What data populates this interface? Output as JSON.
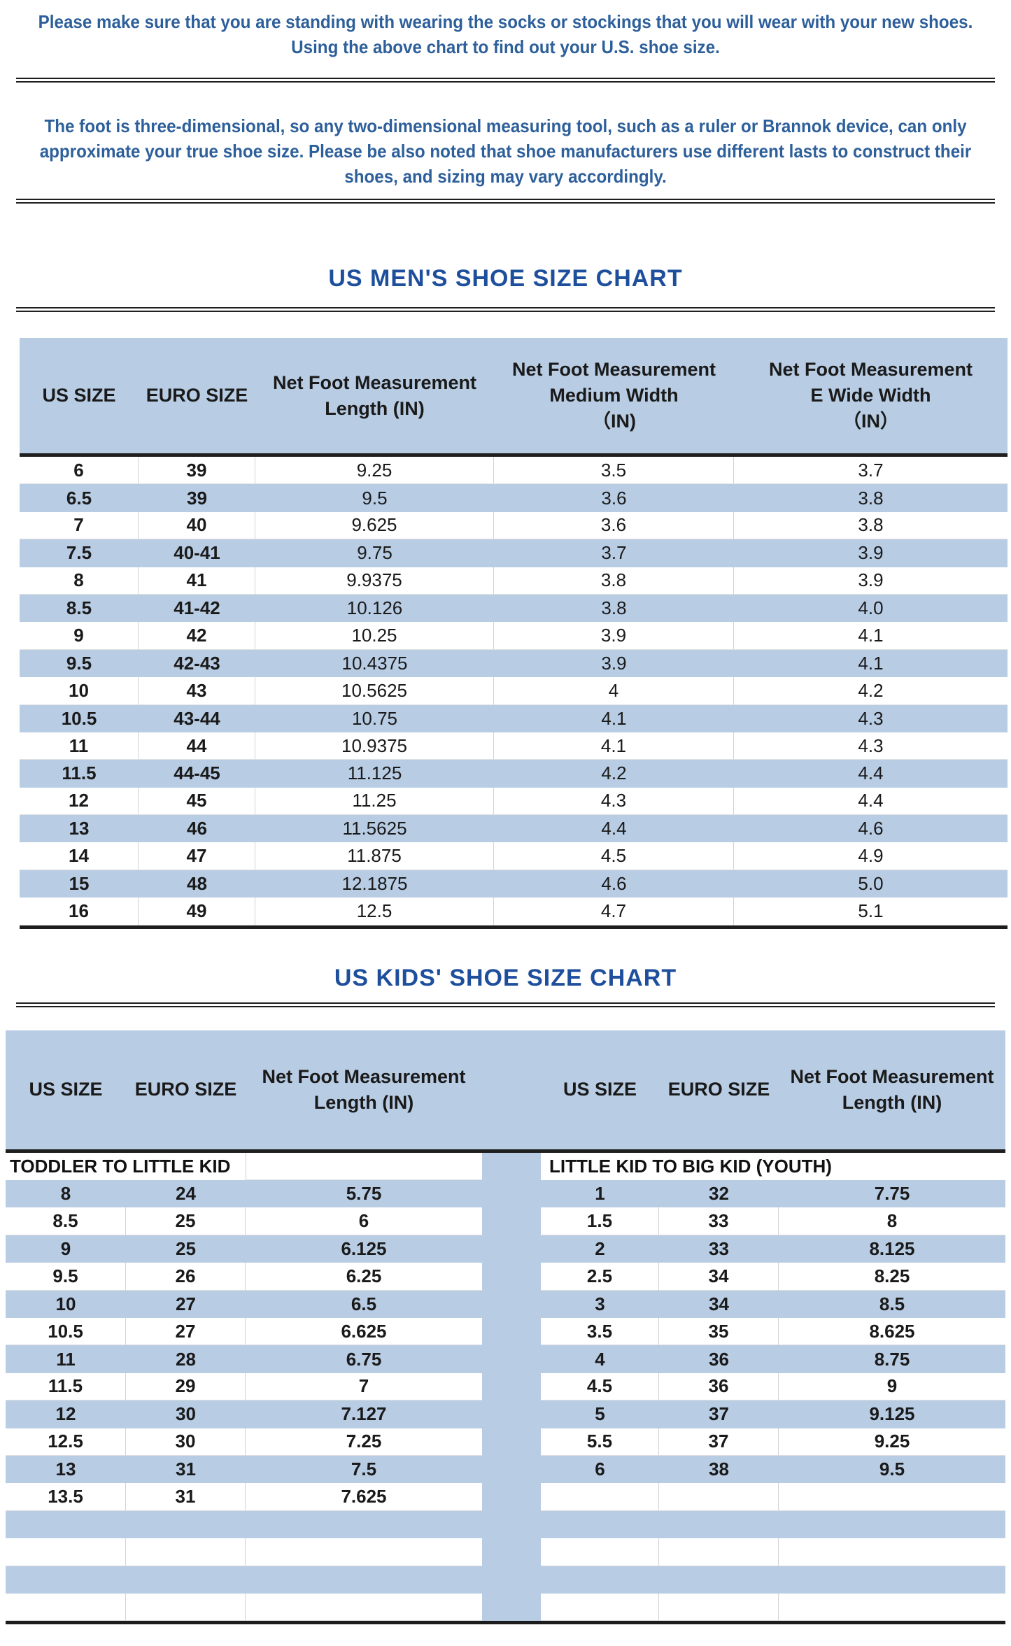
{
  "intro": {
    "note1_lines": [
      "Please make sure that you are standing with wearing the socks or stockings that you will wear with your new shoes.",
      "Using the above chart to find out your U.S. shoe size."
    ],
    "note2_lines": [
      "The foot is three-dimensional, so any two-dimensional measuring tool, such as a ruler or Brannok device, can only",
      "approximate your true shoe size. Please be also noted that shoe manufacturers use different lasts to construct their",
      "shoes, and sizing may vary accordingly."
    ]
  },
  "mens_table": {
    "title": "US MEN'S SHOE SIZE CHART",
    "headers": [
      {
        "lines": [
          "US SIZE"
        ]
      },
      {
        "lines": [
          "EURO SIZE"
        ]
      },
      {
        "lines": [
          "Net Foot Measurement",
          "Length (IN)"
        ]
      },
      {
        "lines": [
          "Net Foot Measurement",
          "Medium Width",
          "（IN)"
        ]
      },
      {
        "lines": [
          "Net Foot Measurement",
          "E Wide Width",
          "（IN）"
        ]
      }
    ],
    "rows": [
      [
        "6",
        "39",
        "9.25",
        "3.5",
        "3.7"
      ],
      [
        "6.5",
        "39",
        "9.5",
        "3.6",
        "3.8"
      ],
      [
        "7",
        "40",
        "9.625",
        "3.6",
        "3.8"
      ],
      [
        "7.5",
        "40-41",
        "9.75",
        "3.7",
        "3.9"
      ],
      [
        "8",
        "41",
        "9.9375",
        "3.8",
        "3.9"
      ],
      [
        "8.5",
        "41-42",
        "10.126",
        "3.8",
        "4.0"
      ],
      [
        "9",
        "42",
        "10.25",
        "3.9",
        "4.1"
      ],
      [
        "9.5",
        "42-43",
        "10.4375",
        "3.9",
        "4.1"
      ],
      [
        "10",
        "43",
        "10.5625",
        "4",
        "4.2"
      ],
      [
        "10.5",
        "43-44",
        "10.75",
        "4.1",
        "4.3"
      ],
      [
        "11",
        "44",
        "10.9375",
        "4.1",
        "4.3"
      ],
      [
        "11.5",
        "44-45",
        "11.125",
        "4.2",
        "4.4"
      ],
      [
        "12",
        "45",
        "11.25",
        "4.3",
        "4.4"
      ],
      [
        "13",
        "46",
        "11.5625",
        "4.4",
        "4.6"
      ],
      [
        "14",
        "47",
        "11.875",
        "4.5",
        "4.9"
      ],
      [
        "15",
        "48",
        "12.1875",
        "4.6",
        "5.0"
      ],
      [
        "16",
        "49",
        "12.5",
        "4.7",
        "5.1"
      ]
    ]
  },
  "kids_table": {
    "title": "US KIDS' SHOE SIZE CHART",
    "headers_left": [
      {
        "lines": [
          "US SIZE"
        ]
      },
      {
        "lines": [
          "EURO SIZE"
        ]
      },
      {
        "lines": [
          "Net Foot Measurement",
          "Length (IN)"
        ]
      }
    ],
    "headers_right": [
      {
        "lines": [
          "US SIZE"
        ]
      },
      {
        "lines": [
          "EURO SIZE"
        ]
      },
      {
        "lines": [
          "Net Foot Measurement",
          "Length (IN)"
        ]
      }
    ],
    "section_left_label": "TODDLER TO LITTLE KID",
    "section_right_label": "LITTLE KID TO BIG KID (YOUTH)",
    "toddler_rows": [
      [
        "8",
        "24",
        "5.75"
      ],
      [
        "8.5",
        "25",
        "6"
      ],
      [
        "9",
        "25",
        "6.125"
      ],
      [
        "9.5",
        "26",
        "6.25"
      ],
      [
        "10",
        "27",
        "6.5"
      ],
      [
        "10.5",
        "27",
        "6.625"
      ],
      [
        "11",
        "28",
        "6.75"
      ],
      [
        "11.5",
        "29",
        "7"
      ],
      [
        "12",
        "30",
        "7.127"
      ],
      [
        "12.5",
        "30",
        "7.25"
      ],
      [
        "13",
        "31",
        "7.5"
      ],
      [
        "13.5",
        "31",
        "7.625"
      ]
    ],
    "youth_rows": [
      [
        "1",
        "32",
        "7.75"
      ],
      [
        "1.5",
        "33",
        "8"
      ],
      [
        "2",
        "33",
        "8.125"
      ],
      [
        "2.5",
        "34",
        "8.25"
      ],
      [
        "3",
        "34",
        "8.5"
      ],
      [
        "3.5",
        "35",
        "8.625"
      ],
      [
        "4",
        "36",
        "8.75"
      ],
      [
        "4.5",
        "36",
        "9"
      ],
      [
        "5",
        "37",
        "9.125"
      ],
      [
        "5.5",
        "37",
        "9.25"
      ],
      [
        "6",
        "38",
        "9.5"
      ],
      [
        "",
        "",
        ""
      ]
    ],
    "empty_trailing_rows": 4
  },
  "colors": {
    "accent_blue": "#b8cce4",
    "title_blue": "#1e4f9d",
    "intro_text_blue": "#2d5f9a",
    "table_text": "#1a1a1a",
    "rule_dark": "#1f1f1f"
  }
}
